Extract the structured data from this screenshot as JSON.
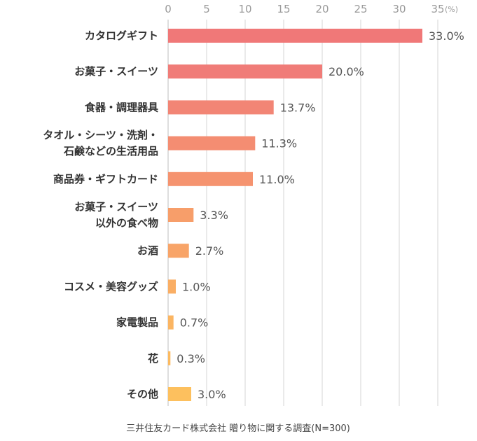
{
  "chart_data": {
    "type": "bar",
    "orientation": "horizontal",
    "x_ticks": [
      "0",
      "5",
      "10",
      "15",
      "20",
      "25",
      "30",
      "35"
    ],
    "x_unit": "(%)",
    "xlim": [
      0,
      35
    ],
    "grid": true,
    "categories": [
      [
        "カタログギフト"
      ],
      [
        "お菓子・スイーツ"
      ],
      [
        "食器・調理器具"
      ],
      [
        "タオル・シーツ・洗剤・",
        "石鹸などの生活用品"
      ],
      [
        "商品券・ギフトカード"
      ],
      [
        "お菓子・スイーツ",
        "以外の食べ物"
      ],
      [
        "お酒"
      ],
      [
        "コスメ・美容グッズ"
      ],
      [
        "家電製品"
      ],
      [
        "花"
      ],
      [
        "その他"
      ]
    ],
    "values": [
      33.0,
      20.0,
      13.7,
      11.3,
      11.0,
      3.3,
      2.7,
      1.0,
      0.7,
      0.3,
      3.0
    ],
    "value_labels": [
      "33.0%",
      "20.0%",
      "13.7%",
      "11.3%",
      "11.0%",
      "3.3%",
      "2.7%",
      "1.0%",
      "0.7%",
      "0.3%",
      "3.0%"
    ],
    "colors": [
      "#f07878",
      "#f07c78",
      "#f28575",
      "#f48d72",
      "#f5936f",
      "#f79e6a",
      "#f8a468",
      "#faae64",
      "#fbb562",
      "#fcba60",
      "#fdc05e"
    ]
  },
  "source": "三井住友カード株式会社 贈り物に関する調査(N=300)"
}
